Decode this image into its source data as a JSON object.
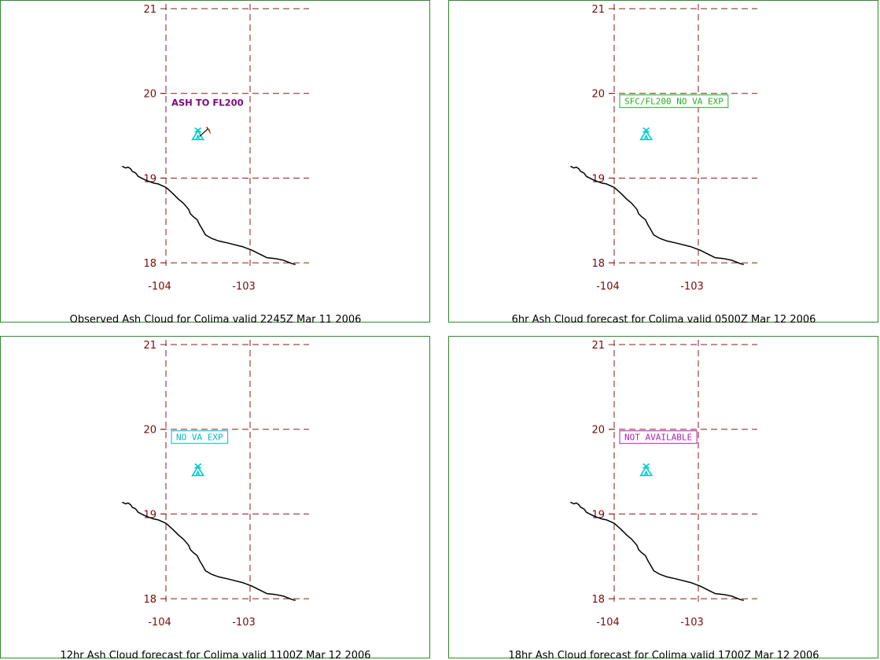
{
  "colors": {
    "grid": "#8b1a1a",
    "frame": "#2e8b2e",
    "coast": "#000000",
    "volcano": "#00cccc"
  },
  "volcano": {
    "name": "Colima",
    "lon": -103.62,
    "lat": 19.51,
    "icon": "volcano-triangle-icon"
  },
  "panels": [
    {
      "id": "observed",
      "caption": "Observed Ash Cloud for Colima valid 2245Z Mar 11 2006",
      "annotation": {
        "text": "ASH TO FL200",
        "boxed": false,
        "color": "#7a0a7a"
      },
      "show_wind_barb": true
    },
    {
      "id": "fcst-6hr",
      "caption": "6hr Ash Cloud forecast for Colima valid 0500Z Mar 12 2006",
      "annotation": {
        "text": "SFC/FL200 NO VA EXP",
        "boxed": true,
        "color": "#22b022"
      },
      "show_wind_barb": false
    },
    {
      "id": "fcst-12hr",
      "caption": "12hr Ash Cloud forecast for Colima valid 1100Z Mar 12 2006",
      "annotation": {
        "text": "NO VA EXP",
        "boxed": true,
        "color": "#00b8c8"
      },
      "show_wind_barb": false
    },
    {
      "id": "fcst-18hr",
      "caption": "18hr Ash Cloud forecast for Colima valid 1700Z Mar 12 2006",
      "annotation": {
        "text": "NOT AVAILABLE",
        "boxed": true,
        "color": "#b020b0"
      },
      "show_wind_barb": false
    }
  ],
  "axes": {
    "lat_labels": [
      "21",
      "20",
      "19",
      "18"
    ],
    "lat_values": [
      21,
      20,
      19,
      18
    ],
    "lon_labels": [
      "-104",
      "-103"
    ],
    "lon_values": [
      -104,
      -103
    ]
  },
  "coastline": [
    [
      -104.52,
      19.14
    ],
    [
      -104.48,
      19.12
    ],
    [
      -104.45,
      19.13
    ],
    [
      -104.42,
      19.11
    ],
    [
      -104.4,
      19.08
    ],
    [
      -104.36,
      19.06
    ],
    [
      -104.33,
      19.02
    ],
    [
      -104.29,
      19.0
    ],
    [
      -104.25,
      18.98
    ],
    [
      -104.2,
      18.96
    ],
    [
      -104.14,
      18.94
    ],
    [
      -104.09,
      18.93
    ],
    [
      -104.0,
      18.89
    ],
    [
      -103.92,
      18.82
    ],
    [
      -103.85,
      18.75
    ],
    [
      -103.79,
      18.7
    ],
    [
      -103.73,
      18.63
    ],
    [
      -103.71,
      18.58
    ],
    [
      -103.68,
      18.55
    ],
    [
      -103.63,
      18.51
    ],
    [
      -103.6,
      18.45
    ],
    [
      -103.57,
      18.4
    ],
    [
      -103.53,
      18.33
    ],
    [
      -103.46,
      18.29
    ],
    [
      -103.38,
      18.26
    ],
    [
      -103.25,
      18.23
    ],
    [
      -103.09,
      18.19
    ],
    [
      -102.98,
      18.15
    ],
    [
      -102.88,
      18.1
    ],
    [
      -102.8,
      18.06
    ],
    [
      -102.7,
      18.05
    ],
    [
      -102.6,
      18.03
    ],
    [
      -102.5,
      17.99
    ],
    [
      -102.46,
      17.98
    ]
  ]
}
